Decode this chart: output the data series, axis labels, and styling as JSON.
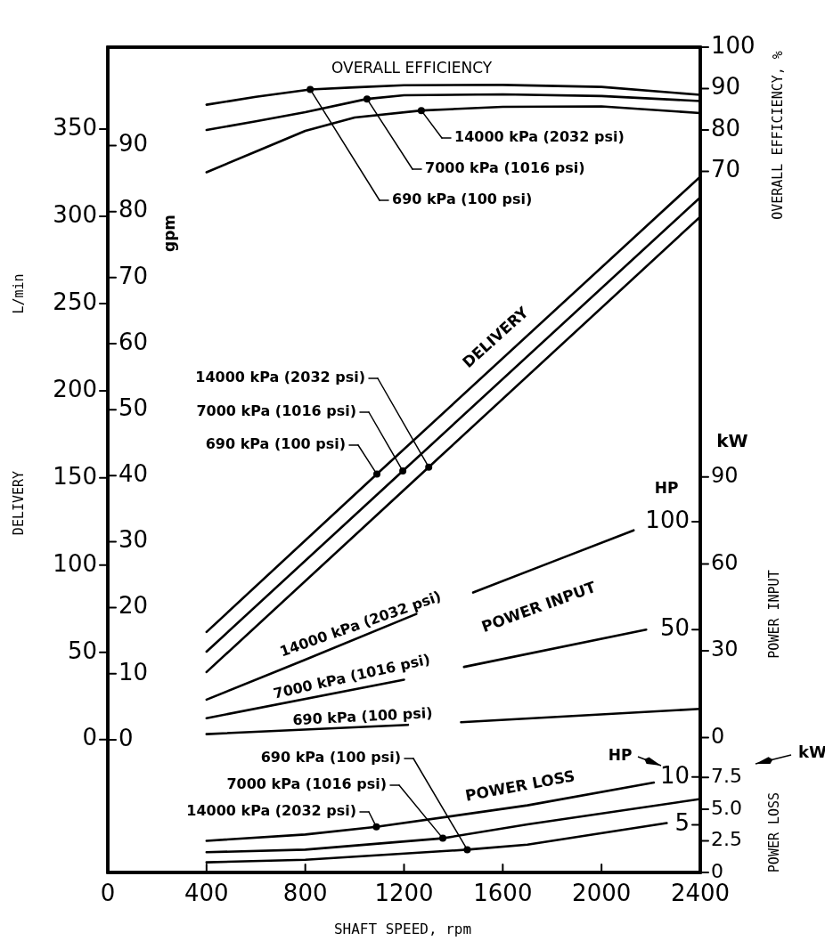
{
  "chart_data": [
    {
      "type": "line",
      "ylabel": "L/min",
      "y2label": "gpm",
      "tick_labels": "y",
      "legend": "left",
      "marker": "none",
      "line_style": "solid",
      "xlim": [
        0,
        2400
      ],
      "ylim": [
        -76.2,
        397
      ],
      "yticks": [
        0,
        50,
        100,
        150,
        200,
        250,
        300,
        350
      ],
      "y2lim": [
        -20.1,
        104.9
      ],
      "y2ticks": [
        0,
        10,
        20,
        30,
        40,
        50,
        60,
        70,
        80,
        90
      ],
      "annotations": [
        "DELIVERY",
        "DELIVERY"
      ],
      "series": [
        {
          "name": "690 kPa (100 psi)",
          "color": "#000000",
          "x": [
            400,
            1090,
            2400
          ],
          "values": [
            61.7,
            152.2,
            322.8
          ]
        },
        {
          "name": "7000 kPa (1016 psi)",
          "color": "#000000",
          "x": [
            400,
            1195,
            2400
          ],
          "values": [
            50.4,
            154.0,
            310.9
          ]
        },
        {
          "name": "14000 kPa (2032 psi)",
          "color": "#000000",
          "x": [
            400,
            1300,
            2400
          ],
          "values": [
            38.7,
            156.2,
            299.8
          ]
        }
      ]
    },
    {
      "type": "line",
      "ylabel": "OVERALL EFFICIENCY, %",
      "tick_labels": "y",
      "legend": "top",
      "marker": "none",
      "line_style": "solid",
      "xlim": [
        0,
        2400
      ],
      "ylim": [
        -99.3,
        100
      ],
      "yticks": [
        70,
        80,
        90,
        100
      ],
      "annotations": [
        "OVERALL EFFICIENCY"
      ],
      "series": [
        {
          "name": "690 kPa (100 psi)",
          "color": "#000000",
          "x": [
            400,
            600,
            820,
            1000,
            1200,
            1600,
            2000,
            2400
          ],
          "values": [
            86.1,
            88.0,
            89.8,
            90.3,
            90.8,
            90.9,
            90.4,
            88.5
          ]
        },
        {
          "name": "7000 kPa (1016 psi)",
          "color": "#000000",
          "x": [
            400,
            600,
            800,
            1050,
            1200,
            1600,
            2000,
            2400
          ],
          "values": [
            80.0,
            82.1,
            84.3,
            87.5,
            88.4,
            88.6,
            88.2,
            87.0
          ]
        },
        {
          "name": "14000 kPa (2032 psi)",
          "color": "#000000",
          "x": [
            400,
            600,
            800,
            1000,
            1270,
            1600,
            2000,
            2400
          ],
          "values": [
            69.8,
            74.8,
            79.8,
            83.0,
            84.7,
            85.6,
            85.7,
            84.1
          ]
        }
      ]
    },
    {
      "type": "line",
      "ylabel": "kW",
      "y2label": "HP",
      "tick_labels": "y",
      "marker": "none",
      "line_style": "solid",
      "xlim": [
        0,
        2400
      ],
      "ylim": [
        -46.6,
        238.5
      ],
      "yticks": [
        0,
        30,
        60,
        90
      ],
      "y2lim": [
        -62.5,
        319.8
      ],
      "y2ticks": [
        50,
        100
      ],
      "annotations": [
        "POWER INPUT",
        "POWER INPUT"
      ],
      "series": [
        {
          "name": "690 kPa (100 psi)",
          "color": "#000000",
          "x": [
            400,
            1216,
            1330,
            1431,
            2400
          ],
          "values": [
            1.2,
            4.4,
            null,
            5.3,
            9.9
          ]
        },
        {
          "name": "7000 kPa (1016 psi)",
          "color": "#000000",
          "x": [
            400,
            1200,
            1320,
            1443,
            2181
          ],
          "values": [
            6.7,
            20.0,
            null,
            24.4,
            37.3
          ]
        },
        {
          "name": "14000 kPa (2032 psi)",
          "color": "#000000",
          "x": [
            400,
            800,
            1250,
            1370,
            1480,
            1800,
            2130
          ],
          "values": [
            13.1,
            26.9,
            42.7,
            null,
            50.1,
            60.7,
            71.6
          ]
        }
      ]
    },
    {
      "type": "line",
      "xlabel": "SHAFT SPEED, rpm",
      "ylabel": "kW",
      "y2label": "HP",
      "legend": "bottom left",
      "marker": "none",
      "line_style": "solid",
      "xlim": [
        0,
        2400
      ],
      "xticks": [
        0,
        400,
        800,
        1200,
        1600,
        2000,
        2400
      ],
      "ylim": [
        0,
        65.2
      ],
      "yticks": [
        0,
        2.5,
        {
          "value": 5,
          "label": "5.0"
        },
        7.5
      ],
      "y2lim": [
        0,
        86.5
      ],
      "y2ticks": [
        5,
        10
      ],
      "annotations": [
        "POWER LOSS",
        "POWER LOSS"
      ],
      "series": [
        {
          "name": "690 kPa (100 psi)",
          "color": "#000000",
          "x": [
            400,
            800,
            1456,
            1700,
            2264
          ],
          "values": [
            0.8,
            1.0,
            1.8,
            2.2,
            3.9
          ]
        },
        {
          "name": "7000 kPa (1016 psi)",
          "color": "#000000",
          "x": [
            400,
            800,
            1357,
            1700,
            2400
          ],
          "values": [
            1.6,
            1.8,
            2.7,
            3.8,
            5.8
          ]
        },
        {
          "name": "14000 kPa (2032 psi)",
          "color": "#000000",
          "x": [
            400,
            800,
            1088,
            1700,
            2212
          ],
          "values": [
            2.5,
            3.0,
            3.6,
            5.3,
            7.1
          ]
        }
      ]
    }
  ]
}
